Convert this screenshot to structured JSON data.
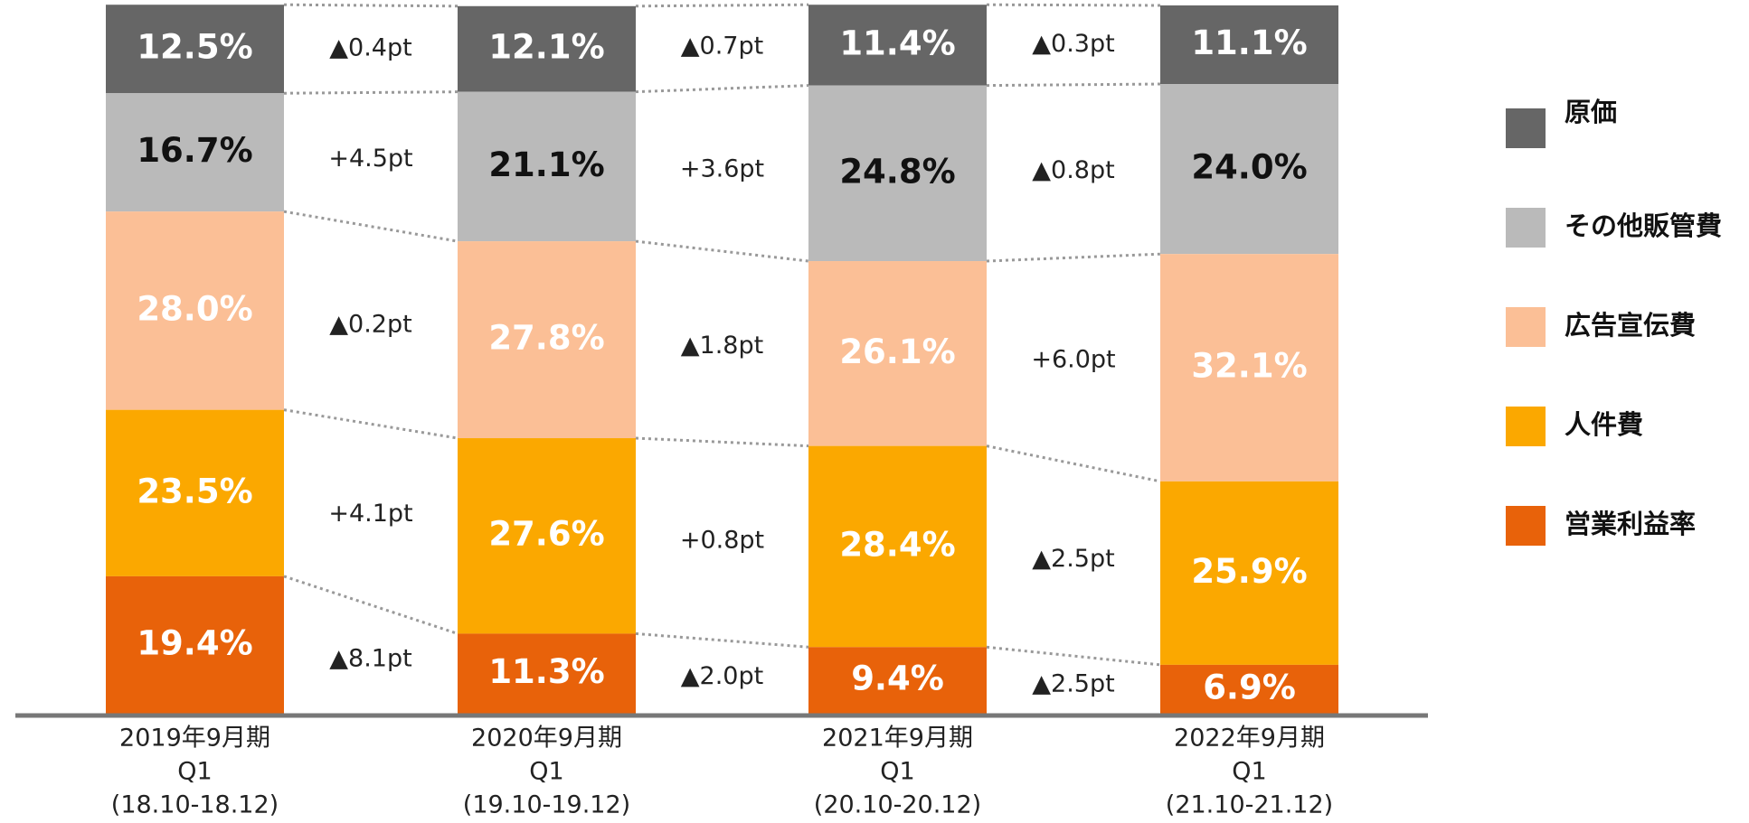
{
  "chart_data": {
    "type": "stacked_bar",
    "categories": [
      [
        "2019年9月期",
        "Q1",
        "(18.10-18.12)"
      ],
      [
        "2020年9月期",
        "Q1",
        "(19.10-19.12)"
      ],
      [
        "2021年9月期",
        "Q1",
        "(20.10-20.12)"
      ],
      [
        "2022年9月期",
        "Q1",
        "(21.10-21.12)"
      ]
    ],
    "ylim": [
      0,
      100
    ],
    "legend": "right",
    "series": [
      {
        "name": "原価",
        "color": "#666666",
        "label_color": "#ffffff",
        "values": [
          12.5,
          12.1,
          11.4,
          11.1
        ],
        "value_labels": [
          "12.5%",
          "12.1%",
          "11.4%",
          "11.1%"
        ],
        "change_labels": [
          "▲0.4pt",
          "▲0.7pt",
          "▲0.3pt"
        ]
      },
      {
        "name": "その他販管費",
        "color": "#BABABA",
        "label_color": "#111111",
        "values": [
          16.7,
          21.1,
          24.8,
          24.0
        ],
        "value_labels": [
          "16.7%",
          "21.1%",
          "24.8%",
          "24.0%"
        ],
        "change_labels": [
          "+4.5pt",
          "+3.6pt",
          "▲0.8pt"
        ]
      },
      {
        "name": "広告宣伝費",
        "color": "#FBBF96",
        "label_color": "#ffffff",
        "values": [
          28.0,
          27.8,
          26.1,
          32.1
        ],
        "value_labels": [
          "28.0%",
          "27.8%",
          "26.1%",
          "32.1%"
        ],
        "change_labels": [
          "▲0.2pt",
          "▲1.8pt",
          "+6.0pt"
        ]
      },
      {
        "name": "人件費",
        "color": "#FBA800",
        "label_color": "#ffffff",
        "values": [
          23.5,
          27.6,
          28.4,
          25.9
        ],
        "value_labels": [
          "23.5%",
          "27.6%",
          "28.4%",
          "25.9%"
        ],
        "change_labels": [
          "+4.1pt",
          "+0.8pt",
          "▲2.5pt"
        ]
      },
      {
        "name": "営業利益率",
        "color": "#E8620A",
        "label_color": "#ffffff",
        "values": [
          19.4,
          11.3,
          9.4,
          6.9
        ],
        "value_labels": [
          "19.4%",
          "11.3%",
          "9.4%",
          "6.9%"
        ],
        "change_labels": [
          "▲8.1pt",
          "▲2.0pt",
          "▲2.5pt"
        ]
      }
    ]
  }
}
